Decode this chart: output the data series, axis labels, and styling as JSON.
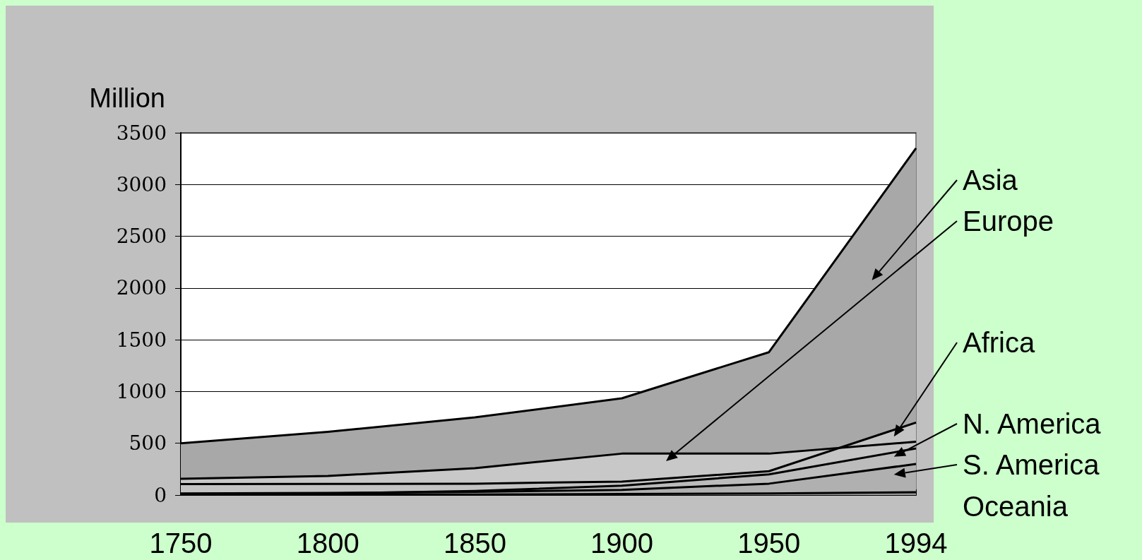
{
  "chart_data": {
    "type": "area",
    "ylabel": "Million",
    "categories": [
      "1750",
      "1800",
      "1850",
      "1900",
      "1950",
      "1994"
    ],
    "series": [
      {
        "name": "Asia",
        "color": "#a8a8a8",
        "values": [
          500,
          610,
          750,
          935,
          1380,
          3350
        ]
      },
      {
        "name": "Europe",
        "color": "#c8c8c8",
        "values": [
          157,
          184,
          260,
          400,
          400,
          515
        ]
      },
      {
        "name": "Africa",
        "color": "#c4c4c4",
        "values": [
          106,
          107,
          110,
          130,
          230,
          700
        ]
      },
      {
        "name": "N. America",
        "color": "#bcbcbc",
        "values": [
          5,
          15,
          40,
          90,
          200,
          450
        ]
      },
      {
        "name": "S. America",
        "color": "#b0b0b0",
        "values": [
          15,
          20,
          30,
          50,
          110,
          300
        ]
      },
      {
        "name": "Oceania",
        "color": "#989898",
        "values": [
          5,
          5,
          5,
          10,
          15,
          27
        ]
      }
    ],
    "ylim": [
      0,
      3500
    ],
    "yticks": [
      0,
      500,
      1000,
      1500,
      2000,
      2500,
      3000,
      3500
    ],
    "grid": "y",
    "legend": "right",
    "marker": "none",
    "line_style": "solid"
  }
}
